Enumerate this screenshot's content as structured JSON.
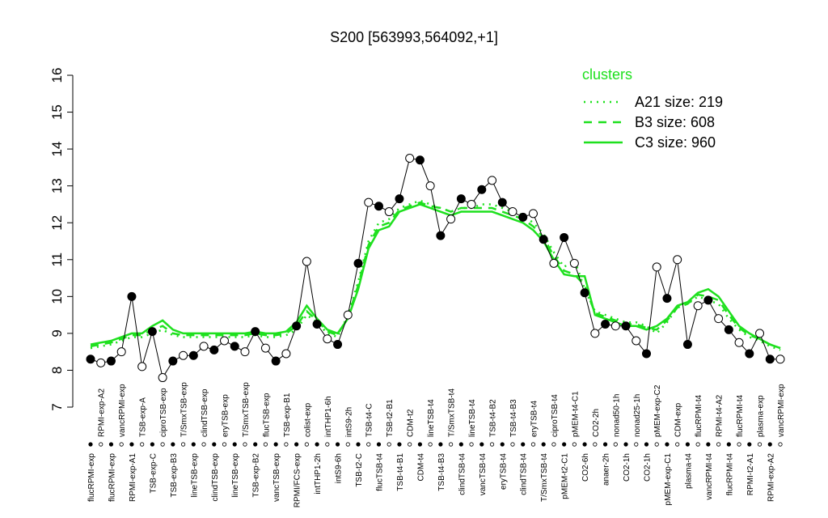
{
  "chart_data": {
    "type": "line",
    "title": "S200 [563993,564092,+1]",
    "categories": [
      "flucRPMI-exp",
      "RPMI-exp-A2",
      "flucRPMI-exp",
      "vancRPMI-exp",
      "RPMI-exp-A1",
      "TSB-exp-A",
      "TSB-exp-C",
      "ciproTSB-exp",
      "TSB-exp-B3",
      "T/SmxTSB-exp",
      "lineTSB-exp",
      "clindTSB-exp",
      "clindTSB-exp",
      "eryTSB-exp",
      "lineTSB-exp",
      "T/SmxTSB-exp",
      "TSB-exp-B2",
      "flucTSB-exp",
      "vancTSB-exp",
      "TSB-exp-B1",
      "RPMI/FCS-exp",
      "colist-exp",
      "intTHP1-2h",
      "intTHP1-6h",
      "intS9-6h",
      "intS9-2h",
      "TSB-t2-C",
      "TSB-t4-C",
      "flucTSB-t4",
      "TSB-t2-B1",
      "TSB-t4-B1",
      "CDM-t2",
      "CDM-t4",
      "lineTSB-t4",
      "TSB-t4-B3",
      "T/SmxTSB-t4",
      "clindTSB-t4",
      "lineTSB-t4",
      "vancTSB-t4",
      "TSB-t4-B2",
      "eryTSB-t4",
      "TSB-t4-B3",
      "clindTSB-t4",
      "eryTSB-t4",
      "T/SmxTSB-t4",
      "ciproTSB-t4",
      "pMEM-t2-C1",
      "pMEM-t4-C1",
      "CO2-6h",
      "CO2-2h",
      "anaer-2h",
      "nonad50-1h",
      "CO2-1h",
      "nonad25-1h",
      "CO2-1h",
      "pMEM-exp-C2",
      "pMEM-exp-C1",
      "CDM-exp",
      "plasma-t4",
      "flucRPMI-t4",
      "vancRPMI-t4",
      "RPMI-t4-A2",
      "flucRPMI-t4",
      "flucRPMI-t4",
      "RPMI-t2-A1",
      "plasma-exp",
      "RPMI-exp-A2",
      "vancRPMI-exp"
    ],
    "values": [
      8.3,
      8.2,
      8.25,
      8.5,
      10.0,
      8.1,
      9.05,
      7.8,
      8.25,
      8.4,
      8.4,
      8.65,
      8.55,
      8.8,
      8.65,
      8.5,
      9.05,
      8.6,
      8.25,
      8.45,
      9.2,
      10.95,
      9.25,
      8.85,
      8.7,
      9.5,
      10.9,
      12.55,
      12.45,
      12.3,
      12.65,
      13.75,
      13.7,
      13.0,
      11.65,
      12.1,
      12.65,
      12.5,
      12.9,
      13.15,
      12.55,
      12.3,
      12.15,
      12.25,
      11.55,
      10.9,
      11.6,
      10.9,
      10.1,
      9.0,
      9.25,
      9.2,
      9.2,
      8.8,
      8.45,
      10.8,
      9.95,
      11.0,
      8.7,
      9.75,
      9.9,
      9.4,
      9.1,
      8.75,
      8.45,
      9.0,
      8.3,
      8.3
    ],
    "point_fills": [
      "black",
      "white",
      "black",
      "white",
      "black",
      "white",
      "black",
      "white",
      "black",
      "white",
      "black",
      "white",
      "black",
      "white",
      "black",
      "white",
      "black",
      "white",
      "black",
      "white",
      "black",
      "white",
      "black",
      "white",
      "black",
      "white",
      "black",
      "white",
      "black",
      "white",
      "black",
      "white",
      "black",
      "white",
      "black",
      "white",
      "black",
      "white",
      "black",
      "white",
      "black",
      "white",
      "black",
      "white",
      "black",
      "white",
      "black",
      "white",
      "black",
      "white",
      "black",
      "white",
      "black",
      "white",
      "black",
      "white",
      "black",
      "white",
      "black",
      "white",
      "black",
      "white",
      "black",
      "white",
      "black",
      "white",
      "black",
      "white"
    ],
    "ylim": [
      7,
      16
    ],
    "yticks": [
      7,
      8,
      9,
      10,
      11,
      12,
      13,
      14,
      15,
      16
    ],
    "legend_title": "clusters",
    "color": "#1ee01e",
    "clusters": [
      {
        "name": "A21 size: 219",
        "style": "dotted",
        "values": [
          8.6,
          8.65,
          8.7,
          8.8,
          8.9,
          8.9,
          9.0,
          9.1,
          8.95,
          8.9,
          8.9,
          8.9,
          8.9,
          8.9,
          8.9,
          8.9,
          8.95,
          8.9,
          8.9,
          8.95,
          9.1,
          9.5,
          9.3,
          9.0,
          8.9,
          9.5,
          10.4,
          11.5,
          12.0,
          12.1,
          12.4,
          12.5,
          12.6,
          12.5,
          12.4,
          12.3,
          12.4,
          12.4,
          12.5,
          12.5,
          12.4,
          12.3,
          12.2,
          12.0,
          11.7,
          11.2,
          10.8,
          11.0,
          10.2,
          9.6,
          9.5,
          9.4,
          9.3,
          9.3,
          9.2,
          9.0,
          9.3,
          9.7,
          9.8,
          10.0,
          9.9,
          9.8,
          9.4,
          9.1,
          8.9,
          8.8,
          8.65,
          8.55
        ]
      },
      {
        "name": "B3 size: 608",
        "style": "dashed",
        "values": [
          8.65,
          8.7,
          8.75,
          8.85,
          8.95,
          8.95,
          9.1,
          9.2,
          9.0,
          8.95,
          8.95,
          8.95,
          8.95,
          8.95,
          8.95,
          8.95,
          9.0,
          8.95,
          8.95,
          9.0,
          9.2,
          9.6,
          9.35,
          9.05,
          8.95,
          9.45,
          10.3,
          11.4,
          11.9,
          12.0,
          12.35,
          12.45,
          12.55,
          12.45,
          12.4,
          12.3,
          12.4,
          12.4,
          12.4,
          12.4,
          12.3,
          12.2,
          12.1,
          11.9,
          11.6,
          11.1,
          10.7,
          10.6,
          10.3,
          9.55,
          9.45,
          9.35,
          9.25,
          9.25,
          9.15,
          9.1,
          9.35,
          9.7,
          9.8,
          10.05,
          10.0,
          9.9,
          9.5,
          9.15,
          8.95,
          8.85,
          8.7,
          8.6
        ]
      },
      {
        "name": "C3 size: 960",
        "style": "solid",
        "values": [
          8.7,
          8.75,
          8.8,
          8.9,
          9.0,
          9.0,
          9.2,
          9.35,
          9.1,
          9.0,
          9.0,
          9.0,
          9.0,
          9.0,
          9.0,
          9.0,
          9.05,
          9.0,
          9.0,
          9.05,
          9.3,
          9.75,
          9.4,
          9.1,
          9.0,
          9.4,
          10.2,
          11.3,
          11.8,
          11.9,
          12.3,
          12.4,
          12.5,
          12.4,
          12.3,
          12.2,
          12.3,
          12.3,
          12.3,
          12.3,
          12.2,
          12.1,
          12.0,
          11.8,
          11.5,
          11.0,
          10.6,
          10.55,
          10.55,
          9.5,
          9.4,
          9.3,
          9.2,
          9.2,
          9.1,
          9.2,
          9.4,
          9.75,
          9.85,
          10.1,
          10.2,
          10.0,
          9.6,
          9.2,
          9.0,
          8.85,
          8.7,
          8.6
        ]
      }
    ]
  }
}
